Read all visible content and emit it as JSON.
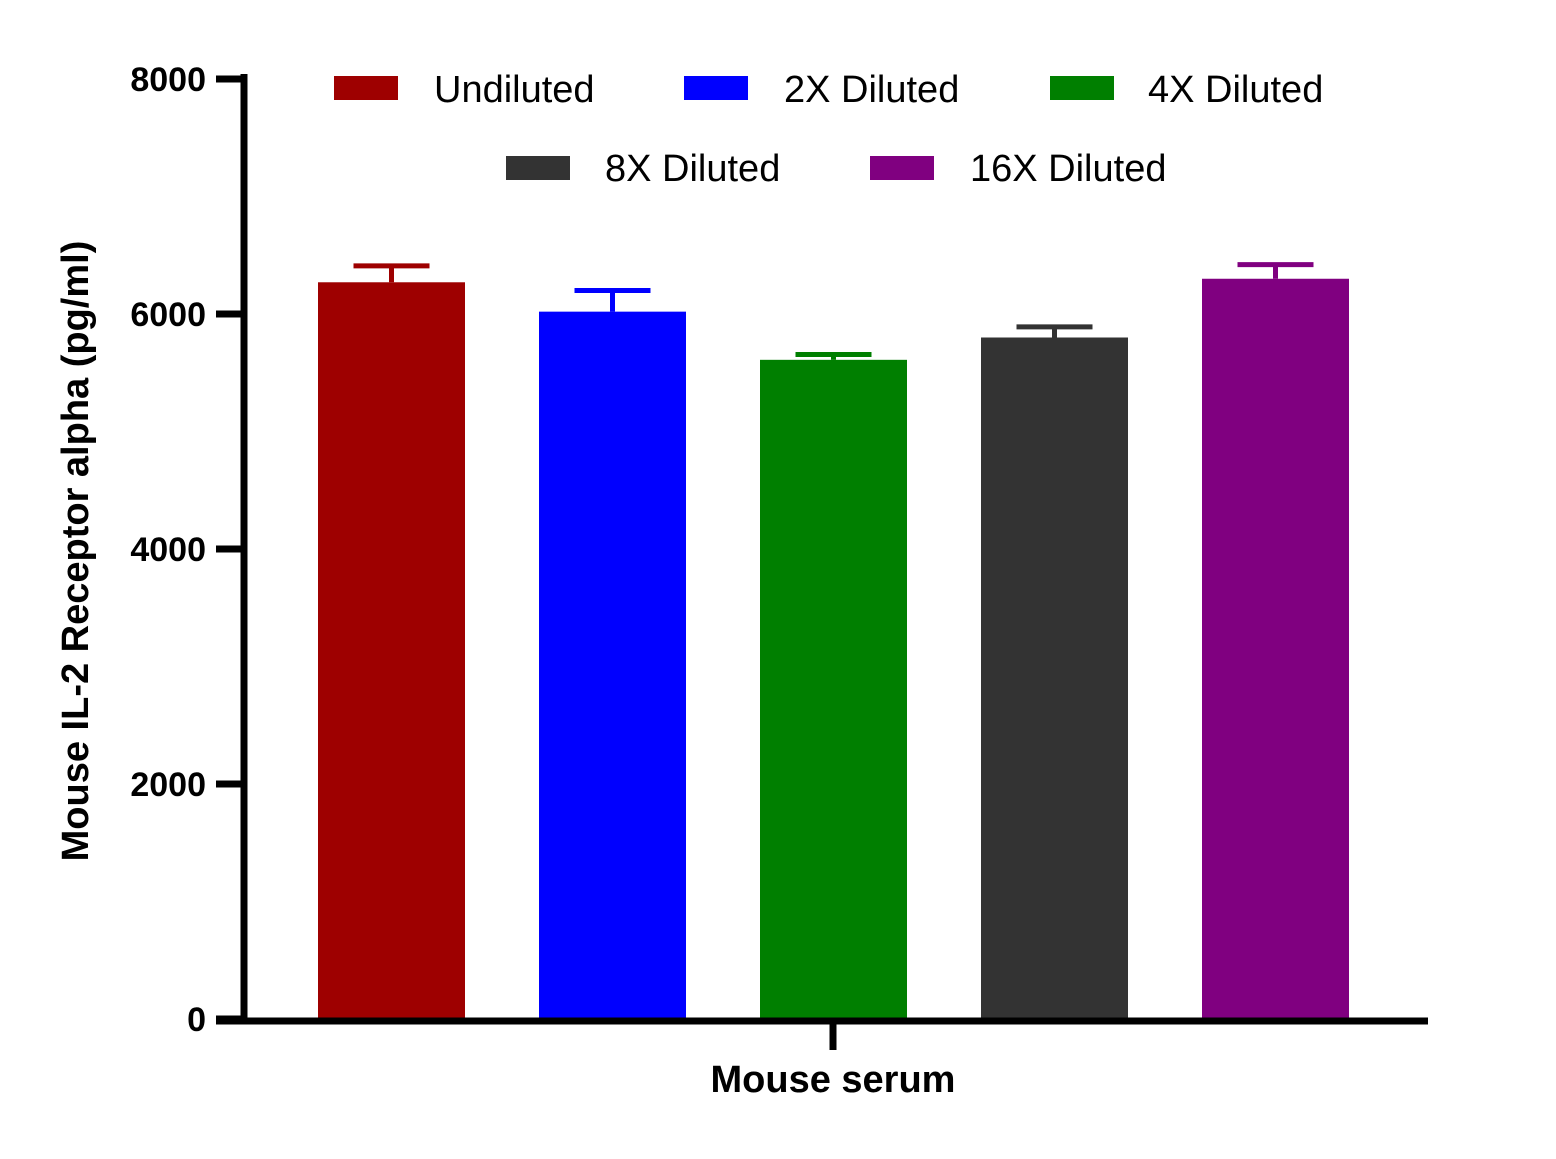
{
  "chart_data": {
    "type": "bar",
    "title": "",
    "xlabel": "Mouse serum",
    "ylabel": "Mouse IL-2 Receptor alpha (pg/ml)",
    "ylim": [
      0,
      8000
    ],
    "yticks": [
      "0",
      "2000",
      "4000",
      "6000",
      "8000"
    ],
    "grid": false,
    "legend_position": "top",
    "categories": [
      "Mouse serum"
    ],
    "series": [
      {
        "name": "Undiluted",
        "value": 6270,
        "error": 140,
        "color": "#9e0000"
      },
      {
        "name": "2X Diluted",
        "value": 6020,
        "error": 180,
        "color": "#0000ff"
      },
      {
        "name": "4X Diluted",
        "value": 5610,
        "error": 45,
        "color": "#007f00"
      },
      {
        "name": "8X Diluted",
        "value": 5800,
        "error": 90,
        "color": "#333333"
      },
      {
        "name": "16X Diluted",
        "value": 6300,
        "error": 120,
        "color": "#800080"
      }
    ]
  }
}
